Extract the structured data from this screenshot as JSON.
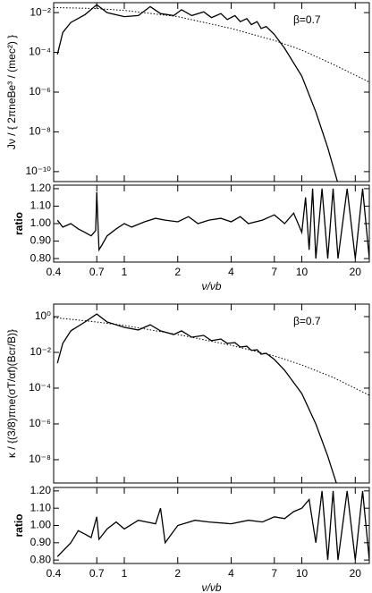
{
  "chart_data": [
    {
      "type": "line",
      "xlog": true,
      "ylog": true,
      "ylabel": "Jν / { 2πneBe³ / (mec²) }",
      "annotation": "β=0.7",
      "xlim": [
        0.4,
        24
      ],
      "xticks": [
        0.4,
        0.7,
        1,
        2,
        4,
        7,
        10,
        20
      ],
      "ylim": [
        3.162e-11,
        0.03162
      ],
      "yticks": [
        {
          "value": 0.01,
          "label": "10⁻²"
        },
        {
          "value": 0.0001,
          "label": "10⁻⁴"
        },
        {
          "value": 1e-06,
          "label": "10⁻⁶"
        },
        {
          "value": 1e-08,
          "label": "10⁻⁸"
        },
        {
          "value": 1e-10,
          "label": "10⁻¹⁰"
        }
      ],
      "series": [
        {
          "color": "#000000",
          "style": "solid",
          "x": [
            0.42,
            0.45,
            0.5,
            0.6,
            0.7,
            0.8,
            1.0,
            1.2,
            1.4,
            1.6,
            1.9,
            2.1,
            2.4,
            2.8,
            3.1,
            3.5,
            3.8,
            4.2,
            4.5,
            4.9,
            5.2,
            5.6,
            5.9,
            6.3,
            7,
            8,
            10,
            12,
            14,
            16
          ],
          "values": [
            7.9e-05,
            0.001,
            0.0032,
            0.0079,
            0.025,
            0.01,
            0.0063,
            0.0071,
            0.02,
            0.0089,
            0.0071,
            0.014,
            0.0071,
            0.011,
            0.0056,
            0.0089,
            0.0045,
            0.0071,
            0.0035,
            0.005,
            0.0025,
            0.0035,
            0.0016,
            0.002,
            0.0008,
            0.00016,
            6.3e-06,
            1e-07,
            1.6e-09,
            2.5e-11
          ]
        },
        {
          "color": "#000000",
          "style": "dotted",
          "x": [
            0.4,
            0.7,
            1,
            2,
            4,
            7,
            10,
            15,
            24
          ],
          "values": [
            0.018,
            0.016,
            0.013,
            0.0063,
            0.0016,
            0.0004,
            0.00013,
            2.5e-05,
            3.2e-06
          ]
        }
      ]
    },
    {
      "type": "line",
      "xlog": true,
      "ylog": false,
      "ylabel": "ratio",
      "xlabel": "ν/νb",
      "xlim": [
        0.4,
        24
      ],
      "xticks": [
        0.4,
        0.7,
        1,
        2,
        4,
        7,
        10,
        20
      ],
      "ylim": [
        0.78,
        1.22
      ],
      "yticks": [
        {
          "value": 0.8,
          "label": "0.80"
        },
        {
          "value": 0.9,
          "label": "0.90"
        },
        {
          "value": 1.0,
          "label": "1.00"
        },
        {
          "value": 1.1,
          "label": "1.10"
        },
        {
          "value": 1.2,
          "label": "1.20"
        }
      ],
      "series": [
        {
          "color": "#000000",
          "style": "solid",
          "x": [
            0.42,
            0.45,
            0.5,
            0.55,
            0.6,
            0.65,
            0.69,
            0.7,
            0.72,
            0.75,
            0.8,
            0.9,
            1.0,
            1.1,
            1.3,
            1.5,
            1.7,
            2,
            2.3,
            2.6,
            3,
            3.5,
            4,
            4.5,
            5,
            6,
            7,
            8,
            9,
            10,
            10.5,
            11,
            11.5,
            12,
            13,
            14,
            15,
            16,
            18,
            20,
            22,
            24
          ],
          "values": [
            1.02,
            0.98,
            1.0,
            0.97,
            0.95,
            0.93,
            0.96,
            1.18,
            0.85,
            0.88,
            0.93,
            0.97,
            1.0,
            0.98,
            1.01,
            1.03,
            1.02,
            1.01,
            1.04,
            1.0,
            1.02,
            1.03,
            1.01,
            1.04,
            1.0,
            1.02,
            1.05,
            1.0,
            1.06,
            0.95,
            1.15,
            0.85,
            1.2,
            0.8,
            1.2,
            0.8,
            1.2,
            0.8,
            1.2,
            0.8,
            1.2,
            0.8
          ]
        }
      ]
    },
    {
      "type": "line",
      "xlog": true,
      "ylog": true,
      "ylabel": "κ / {(3/8)πne(σT/αf)(Bcr/B)}",
      "annotation": "β=0.7",
      "xlim": [
        0.4,
        24
      ],
      "xticks": [
        0.4,
        0.7,
        1,
        2,
        4,
        7,
        10,
        20
      ],
      "ylim": [
        5e-10,
        5
      ],
      "yticks": [
        {
          "value": 1,
          "label": "10⁰"
        },
        {
          "value": 0.01,
          "label": "10⁻²"
        },
        {
          "value": 0.0001,
          "label": "10⁻⁴"
        },
        {
          "value": 1e-06,
          "label": "10⁻⁶"
        },
        {
          "value": 1e-08,
          "label": "10⁻⁸"
        }
      ],
      "series": [
        {
          "color": "#000000",
          "style": "solid",
          "x": [
            0.42,
            0.45,
            0.5,
            0.6,
            0.7,
            0.8,
            1.0,
            1.2,
            1.4,
            1.6,
            1.9,
            2.1,
            2.4,
            2.8,
            3.1,
            3.5,
            3.8,
            4.2,
            4.5,
            4.9,
            5.2,
            5.6,
            5.9,
            6.3,
            7,
            8,
            10,
            12,
            14,
            16
          ],
          "values": [
            0.0025,
            0.032,
            0.16,
            0.5,
            1.4,
            0.5,
            0.25,
            0.18,
            0.35,
            0.16,
            0.1,
            0.16,
            0.071,
            0.089,
            0.045,
            0.056,
            0.032,
            0.035,
            0.02,
            0.022,
            0.013,
            0.014,
            0.0079,
            0.0089,
            0.004,
            0.001,
            5e-05,
            1e-06,
            1.6e-08,
            2.5e-10
          ]
        },
        {
          "color": "#000000",
          "style": "dotted",
          "x": [
            0.4,
            0.7,
            1,
            2,
            4,
            7,
            10,
            15,
            24
          ],
          "values": [
            0.89,
            0.5,
            0.32,
            0.1,
            0.025,
            0.0063,
            0.002,
            0.0004,
            4e-05
          ]
        }
      ]
    },
    {
      "type": "line",
      "xlog": true,
      "ylog": false,
      "ylabel": "ratio",
      "xlabel": "ν/νb",
      "xlim": [
        0.4,
        24
      ],
      "xticks": [
        0.4,
        0.7,
        1,
        2,
        4,
        7,
        10,
        20
      ],
      "ylim": [
        0.78,
        1.22
      ],
      "yticks": [
        {
          "value": 0.8,
          "label": "0.80"
        },
        {
          "value": 0.9,
          "label": "0.90"
        },
        {
          "value": 1.0,
          "label": "1.00"
        },
        {
          "value": 1.1,
          "label": "1.10"
        },
        {
          "value": 1.2,
          "label": "1.20"
        }
      ],
      "series": [
        {
          "color": "#000000",
          "style": "solid",
          "x": [
            0.42,
            0.5,
            0.55,
            0.6,
            0.65,
            0.7,
            0.72,
            0.8,
            0.9,
            1,
            1.2,
            1.5,
            1.6,
            1.7,
            2,
            2.5,
            3,
            4,
            5,
            6,
            7,
            8,
            9,
            10,
            11,
            12,
            13,
            14,
            15,
            16,
            18,
            20,
            22,
            24
          ],
          "values": [
            0.82,
            0.9,
            0.97,
            0.95,
            0.93,
            1.05,
            0.92,
            0.98,
            1.02,
            0.98,
            1.03,
            1.01,
            1.1,
            0.9,
            1.0,
            1.03,
            1.02,
            1.01,
            1.03,
            1.02,
            1.05,
            1.04,
            1.08,
            1.1,
            1.15,
            0.9,
            1.2,
            0.8,
            1.2,
            0.8,
            1.2,
            0.8,
            1.2,
            0.8
          ]
        }
      ]
    }
  ]
}
